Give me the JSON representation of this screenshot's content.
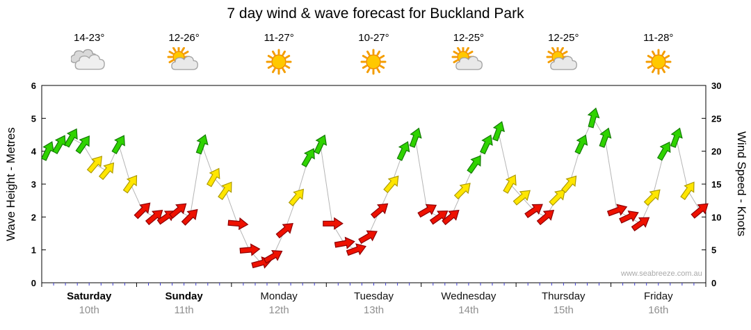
{
  "title": "7 day wind & wave forecast for Buckland Park",
  "watermark": "www.seabreeze.com.au",
  "axes": {
    "left_label": "Wave Height - Metres",
    "right_label": "Wind Speed - Knots",
    "left_ticks": [
      0,
      1,
      2,
      3,
      4,
      5,
      6
    ],
    "right_ticks": [
      0,
      5,
      10,
      15,
      20,
      25,
      30
    ]
  },
  "colors": {
    "arrows": {
      "green": [
        "#2FD300",
        "#127A00"
      ],
      "yellow": [
        "#FFE600",
        "#AD9A00"
      ],
      "red": [
        "#EE1100",
        "#8C0000"
      ]
    },
    "line": "#B5B5B5",
    "frame": "#000000",
    "minor_tick": "#3A3ACF",
    "date_text": "#8F8F8F"
  },
  "chart_data": {
    "type": "wind-arrows",
    "title": "7 day wind & wave forecast for Buckland Park",
    "left_axis": {
      "label": "Wave Height - Metres",
      "range": [
        0,
        6
      ]
    },
    "right_axis": {
      "label": "Wind Speed - Knots",
      "range": [
        0,
        30
      ]
    },
    "slots_per_day": 8,
    "legend": "arrow colour = wind strength (green strong, yellow moderate, red light); arrow rotation = wind direction; values read on right axis in knots",
    "days": [
      {
        "name": "Saturday",
        "date": "10th",
        "temp": "14-23°",
        "icon": "cloudy",
        "weekend": true,
        "knots": [
          20,
          21,
          22,
          21,
          18,
          17,
          21,
          15
        ],
        "dirs": [
          25,
          30,
          30,
          35,
          40,
          40,
          30,
          35
        ],
        "colors": [
          "green",
          "green",
          "green",
          "green",
          "yellow",
          "yellow",
          "green",
          "yellow"
        ]
      },
      {
        "name": "Sunday",
        "date": "11th",
        "temp": "12-26°",
        "icon": "partly-cloudy",
        "weekend": true,
        "knots": [
          11,
          10,
          10,
          11,
          10,
          21,
          16,
          14
        ],
        "dirs": [
          45,
          50,
          55,
          50,
          45,
          20,
          30,
          35
        ],
        "colors": [
          "red",
          "red",
          "red",
          "red",
          "red",
          "green",
          "yellow",
          "yellow"
        ]
      },
      {
        "name": "Monday",
        "date": "12th",
        "temp": "11-27°",
        "icon": "sunny",
        "weekend": false,
        "knots": [
          9,
          5,
          3,
          4,
          8,
          13,
          19,
          21
        ],
        "dirs": [
          95,
          85,
          75,
          60,
          50,
          40,
          30,
          25
        ],
        "colors": [
          "red",
          "red",
          "red",
          "red",
          "red",
          "yellow",
          "green",
          "green"
        ]
      },
      {
        "name": "Tuesday",
        "date": "13th",
        "temp": "10-27°",
        "icon": "sunny",
        "weekend": false,
        "knots": [
          9,
          6,
          5,
          7,
          11,
          15,
          20,
          22
        ],
        "dirs": [
          90,
          80,
          70,
          60,
          50,
          40,
          25,
          20
        ],
        "colors": [
          "red",
          "red",
          "red",
          "red",
          "red",
          "yellow",
          "green",
          "green"
        ]
      },
      {
        "name": "Wednesday",
        "date": "14th",
        "temp": "12-25°",
        "icon": "partly-cloudy",
        "weekend": false,
        "knots": [
          11,
          10,
          10,
          14,
          18,
          21,
          23,
          15
        ],
        "dirs": [
          60,
          55,
          50,
          45,
          35,
          25,
          20,
          30
        ],
        "colors": [
          "red",
          "red",
          "red",
          "yellow",
          "green",
          "green",
          "green",
          "yellow"
        ]
      },
      {
        "name": "Thursday",
        "date": "15th",
        "temp": "12-25°",
        "icon": "partly-cloudy",
        "weekend": false,
        "knots": [
          13,
          11,
          10,
          13,
          15,
          21,
          25,
          22
        ],
        "dirs": [
          50,
          55,
          50,
          45,
          40,
          25,
          15,
          20
        ],
        "colors": [
          "yellow",
          "red",
          "red",
          "yellow",
          "yellow",
          "green",
          "green",
          "green"
        ]
      },
      {
        "name": "Friday",
        "date": "16th",
        "temp": "11-28°",
        "icon": "sunny",
        "weekend": false,
        "knots": [
          11,
          10,
          9,
          13,
          20,
          22,
          14,
          11
        ],
        "dirs": [
          70,
          65,
          55,
          45,
          30,
          20,
          35,
          50
        ],
        "colors": [
          "red",
          "red",
          "red",
          "yellow",
          "green",
          "green",
          "yellow",
          "red"
        ]
      }
    ]
  }
}
